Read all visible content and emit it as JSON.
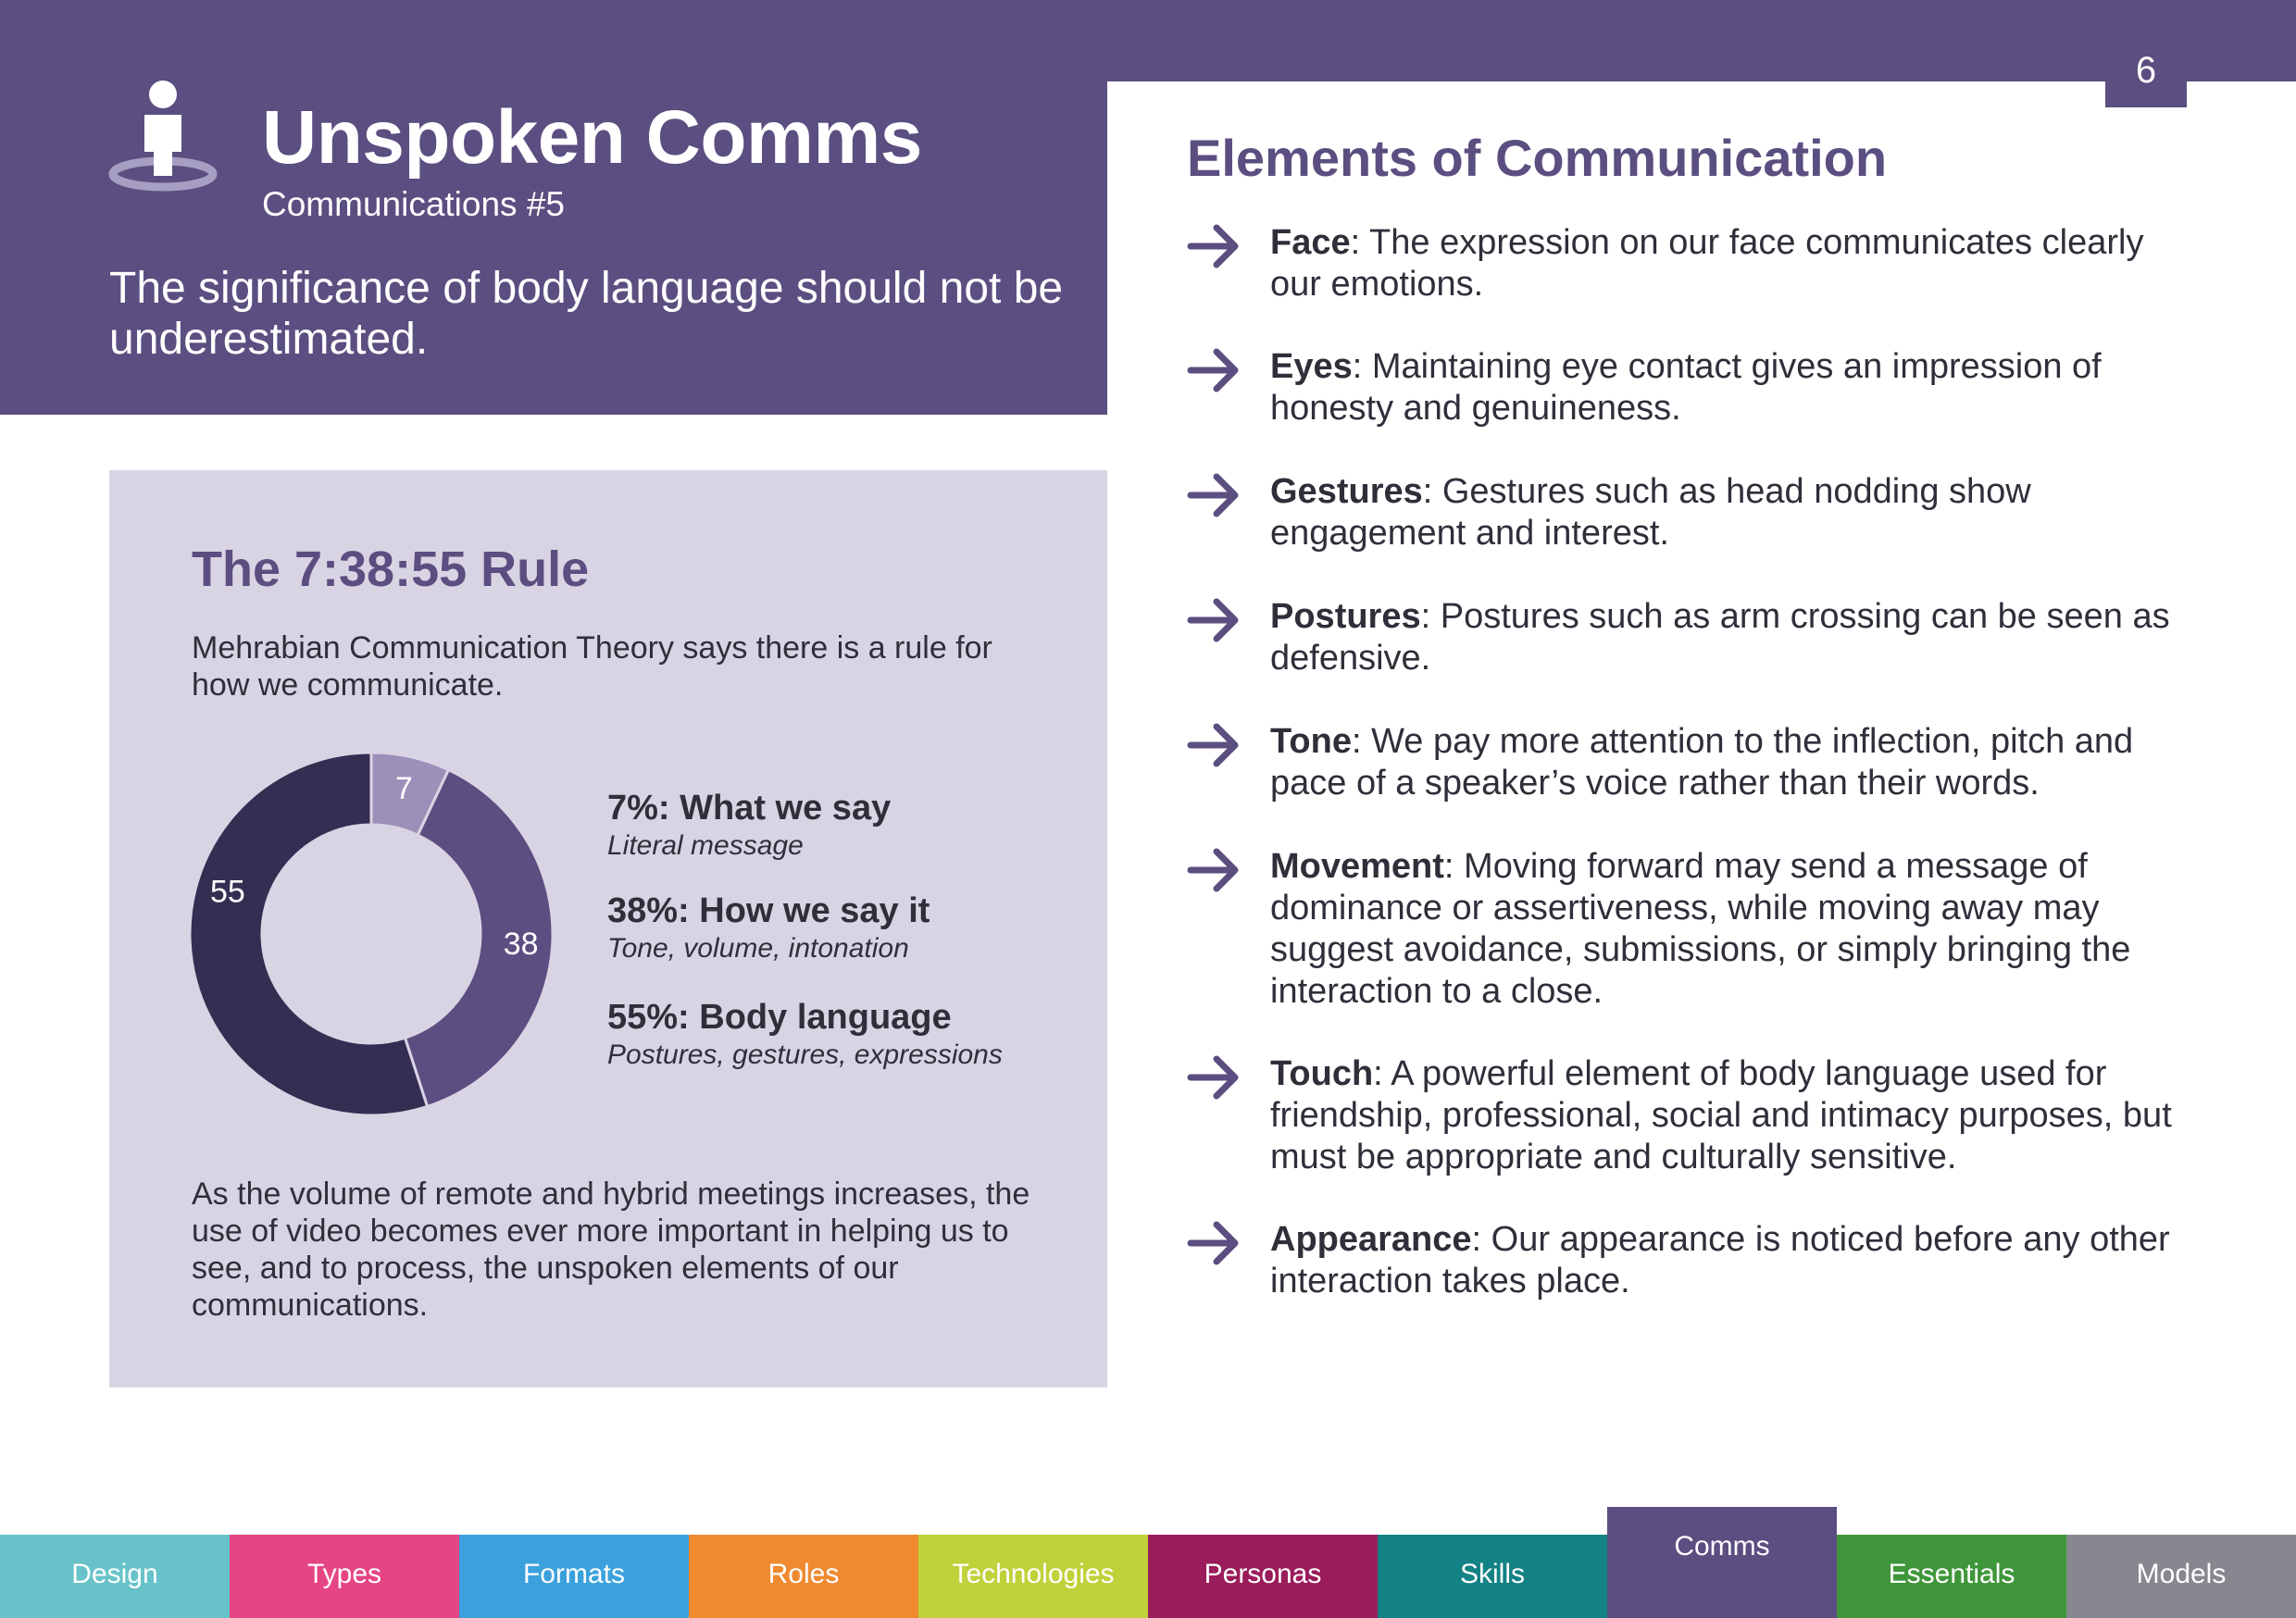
{
  "page_number": "6",
  "header": {
    "title": "Unspoken Comms",
    "subtitle": "Communications #5",
    "intro": "The significance of body language should not be underestimated."
  },
  "card": {
    "title": "The 7:38:55 Rule",
    "text": "Mehrabian Communication Theory says there is a rule for how we communicate.",
    "footer_text": "As the volume of remote and hybrid meetings increases, the use of video becomes ever more important in helping us to see, and to process, the unspoken elements of our communications.",
    "legend": [
      {
        "heading": "7%: What we say",
        "sub": "Literal message"
      },
      {
        "heading": "38%: How we say it",
        "sub": "Tone, volume, intonation"
      },
      {
        "heading": "55%: Body language",
        "sub": "Postures, gestures, expressions"
      }
    ]
  },
  "chart_data": {
    "type": "pie",
    "style": "donut",
    "categories": [
      "7",
      "38",
      "55"
    ],
    "values": [
      7,
      38,
      55
    ],
    "colors": [
      "#9b90b8",
      "#5b4e80",
      "#362d52"
    ]
  },
  "elements": {
    "title": "Elements of Communication",
    "items": [
      {
        "term": "Face",
        "text": ": The expression on our face communicates clearly our emotions."
      },
      {
        "term": "Eyes",
        "text": ": Maintaining eye contact gives an impression of honesty and genuineness."
      },
      {
        "term": "Gestures",
        "text": ": Gestures such as head nodding show engagement and interest."
      },
      {
        "term": "Postures",
        "text": ": Postures such as arm crossing can be seen as defensive."
      },
      {
        "term": "Tone",
        "text": ": We pay more attention to the inflection, pitch and pace of a speaker’s voice rather than their words."
      },
      {
        "term": "Movement",
        "text": ": Moving forward may send a message of dominance or assertiveness, while moving away may suggest avoidance, submissions, or simply bringing the interaction to a close."
      },
      {
        "term": "Touch",
        "text": ": A powerful element of body language used for friendship, professional, social and intimacy purposes, but must be appropriate and culturally sensitive."
      },
      {
        "term": "Appearance",
        "text": ": Our appearance is noticed before any other interaction takes place."
      }
    ]
  },
  "nav": {
    "active": "Comms",
    "tabs": [
      {
        "label": "Design",
        "color": "#67c3c9"
      },
      {
        "label": "Types",
        "color": "#e54585"
      },
      {
        "label": "Formats",
        "color": "#3ba1dc"
      },
      {
        "label": "Roles",
        "color": "#f08a30"
      },
      {
        "label": "Technologies",
        "color": "#bfd23a"
      },
      {
        "label": "Personas",
        "color": "#9a1c5a"
      },
      {
        "label": "Skills",
        "color": "#138284"
      },
      {
        "label": "Comms",
        "color": "#5b4e80"
      },
      {
        "label": "Essentials",
        "color": "#3f963a"
      },
      {
        "label": "Models",
        "color": "#87888f"
      }
    ]
  },
  "colors": {
    "brand": "#5b4e80",
    "card_bg": "#d9d4e4"
  },
  "icons": [
    "person-icon",
    "arrow-right-icon"
  ]
}
